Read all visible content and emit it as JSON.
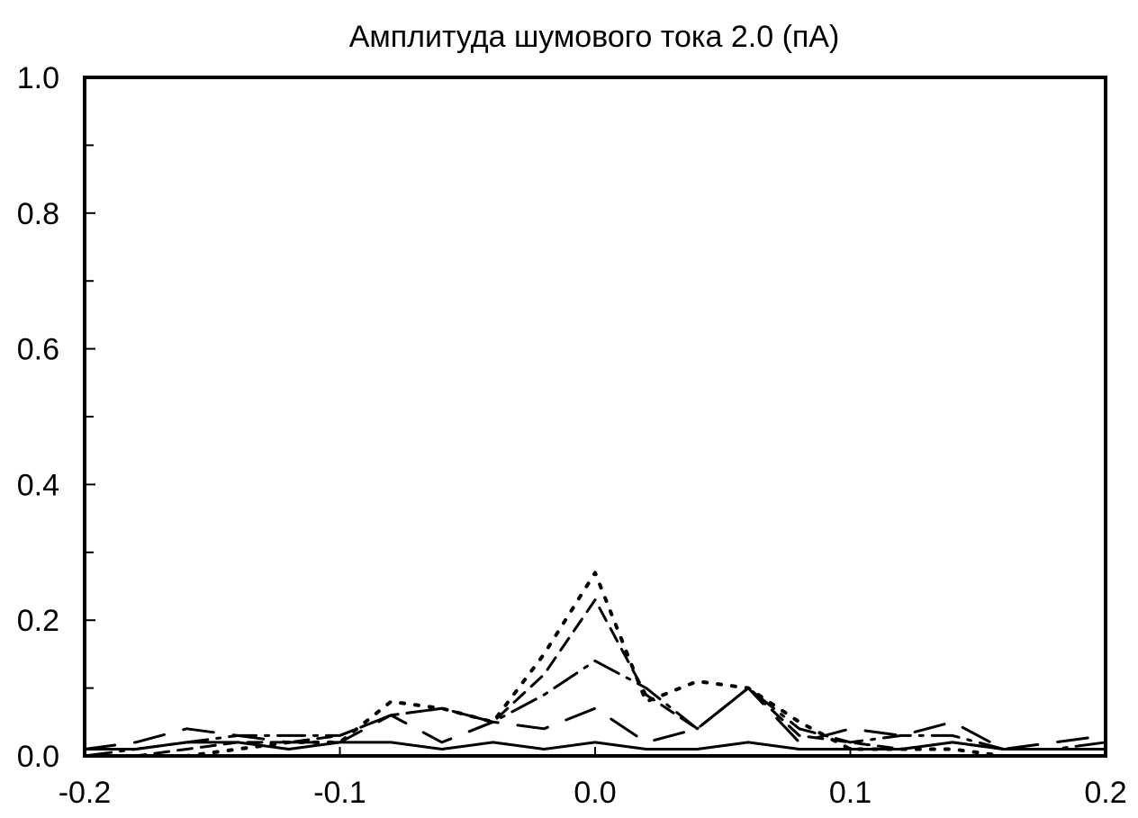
{
  "chart_data": {
    "type": "line",
    "title": "Амплитуда шумового тока 2.0 (пА)",
    "xlabel": "",
    "ylabel": "",
    "xlim": [
      -0.2,
      0.2
    ],
    "ylim": [
      0.0,
      1.0
    ],
    "x_ticks": [
      "-0.2",
      "-0.1",
      "0.0",
      "0.1",
      "0.2"
    ],
    "x_tick_values": [
      -0.2,
      -0.1,
      0.0,
      0.1,
      0.2
    ],
    "y_ticks": [
      "0.0",
      "0.2",
      "0.4",
      "0.6",
      "0.8",
      "1.0"
    ],
    "y_tick_values": [
      0.0,
      0.2,
      0.4,
      0.6,
      0.8,
      1.0
    ],
    "y_minor_ticks": [
      0.1,
      0.3,
      0.5,
      0.7,
      0.9
    ],
    "grid": false,
    "x": [
      -0.2,
      -0.18,
      -0.16,
      -0.14,
      -0.12,
      -0.1,
      -0.08,
      -0.06,
      -0.04,
      -0.02,
      0.0,
      0.02,
      0.04,
      0.06,
      0.08,
      0.1,
      0.12,
      0.14,
      0.16,
      0.18,
      0.2
    ],
    "series": [
      {
        "style": "solid",
        "values": [
          0.01,
          0.01,
          0.02,
          0.02,
          0.01,
          0.02,
          0.02,
          0.01,
          0.02,
          0.01,
          0.02,
          0.01,
          0.01,
          0.02,
          0.01,
          0.01,
          0.01,
          0.02,
          0.01,
          0.01,
          0.01
        ]
      },
      {
        "style": "longdash",
        "values": [
          0.01,
          0.02,
          0.04,
          0.03,
          0.02,
          0.02,
          0.06,
          0.02,
          0.05,
          0.04,
          0.07,
          0.02,
          0.04,
          0.1,
          0.02,
          0.04,
          0.03,
          0.05,
          0.01,
          0.02,
          0.03
        ]
      },
      {
        "style": "dashdot",
        "values": [
          0.0,
          0.01,
          0.02,
          0.03,
          0.03,
          0.03,
          0.06,
          0.07,
          0.05,
          0.09,
          0.14,
          0.1,
          0.04,
          0.1,
          0.04,
          0.02,
          0.03,
          0.03,
          0.01,
          0.01,
          0.02
        ]
      },
      {
        "style": "dash",
        "values": [
          0.0,
          0.0,
          0.01,
          0.02,
          0.02,
          0.03,
          0.06,
          0.07,
          0.05,
          0.12,
          0.23,
          0.09,
          0.04,
          0.1,
          0.03,
          0.02,
          0.01,
          0.02,
          0.01,
          0.01,
          0.01
        ]
      },
      {
        "style": "dot",
        "values": [
          0.0,
          0.0,
          0.0,
          0.01,
          0.02,
          0.02,
          0.08,
          0.07,
          0.05,
          0.15,
          0.27,
          0.08,
          0.11,
          0.1,
          0.05,
          0.01,
          0.01,
          0.01,
          0.0,
          0.0,
          0.0
        ]
      }
    ]
  }
}
